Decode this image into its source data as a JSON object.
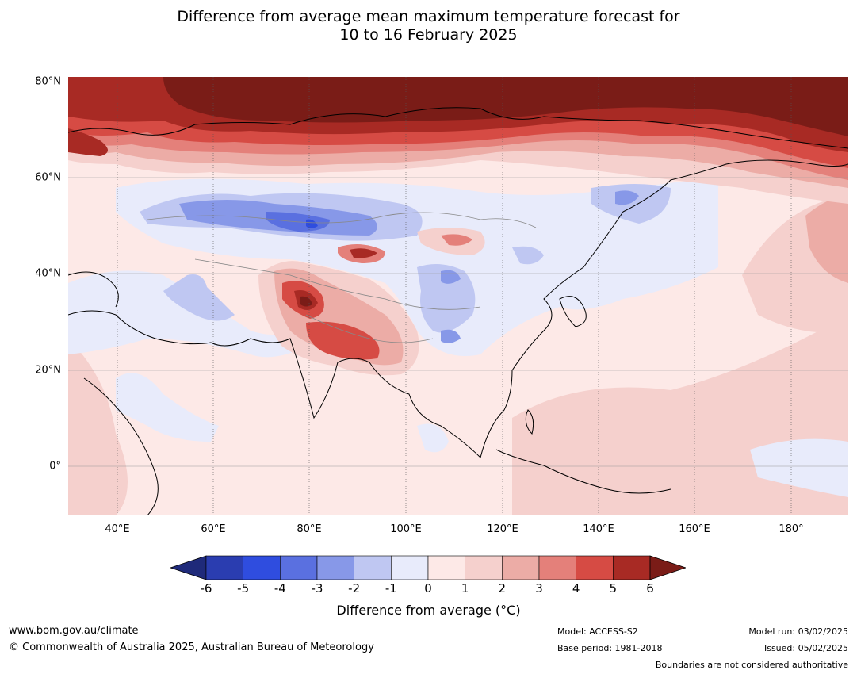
{
  "title_line1": "Difference from average mean maximum temperature forecast for",
  "title_line2": "10 to 16 February 2025",
  "lat_labels": [
    "80°N",
    "60°N",
    "40°N",
    "20°N",
    "0°"
  ],
  "lon_labels": [
    "40°E",
    "60°E",
    "80°E",
    "100°E",
    "120°E",
    "140°E",
    "160°E",
    "180°"
  ],
  "colorbar": {
    "ticks": [
      "-6",
      "-5",
      "-4",
      "-3",
      "-2",
      "-1",
      "0",
      "1",
      "2",
      "3",
      "4",
      "5",
      "6"
    ],
    "colors": [
      "#1f2a7a",
      "#2a3db0",
      "#2f4ddf",
      "#5a70e0",
      "#8798e8",
      "#bfc7f2",
      "#e8ebfb",
      "#fde9e7",
      "#f5d0cd",
      "#ecaca6",
      "#e4807a",
      "#d64b44",
      "#a82a24",
      "#7a1c17"
    ],
    "label": "Difference from average (°C)"
  },
  "footer": {
    "website": "www.bom.gov.au/climate",
    "copyright": "© Commonwealth of Australia 2025, Australian Bureau of Meteorology",
    "model": "Model: ACCESS-S2",
    "base_period": "Base period: 1981-2018",
    "model_run": "Model run: 03/02/2025",
    "issued": "Issued: 05/02/2025",
    "disclaimer": "Boundaries are not considered authoritative"
  }
}
